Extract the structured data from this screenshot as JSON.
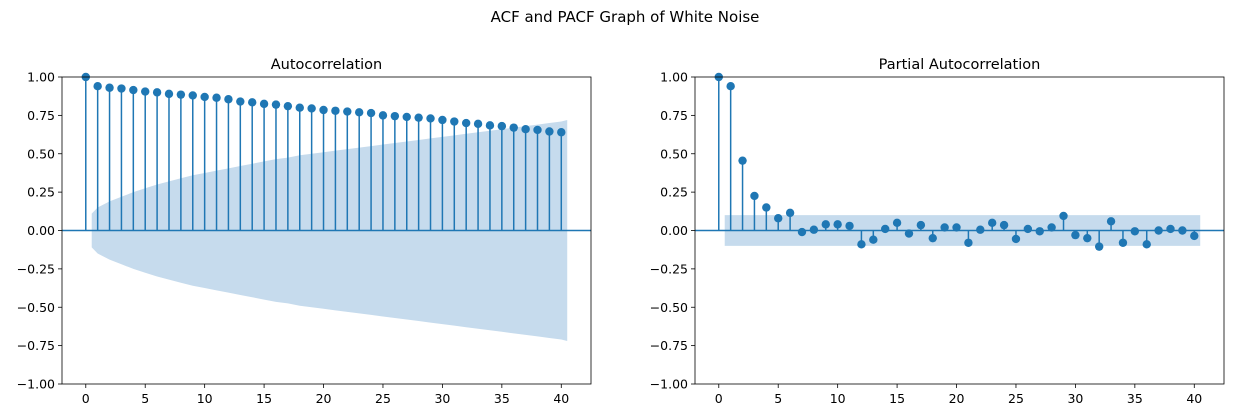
{
  "figure": {
    "title": "ACF and PACF Graph of White Noise"
  },
  "colors": {
    "stem": "#1f77b4",
    "band": "#c6dbed",
    "axis": "#000000"
  },
  "chart_data": [
    {
      "type": "stem",
      "title": "Autocorrelation",
      "xlabel": "",
      "ylabel": "",
      "xlim": [
        -2,
        42.5
      ],
      "ylim": [
        -1.0,
        1.0
      ],
      "xticks": [
        0,
        5,
        10,
        15,
        20,
        25,
        30,
        35,
        40
      ],
      "yticks": [
        -1.0,
        -0.75,
        -0.5,
        -0.25,
        0.0,
        0.25,
        0.5,
        0.75,
        1.0
      ],
      "ytick_labels": [
        "−1.00",
        "−0.75",
        "−0.50",
        "−0.25",
        "0.00",
        "0.25",
        "0.50",
        "0.75",
        "1.00"
      ],
      "x": [
        0,
        1,
        2,
        3,
        4,
        5,
        6,
        7,
        8,
        9,
        10,
        11,
        12,
        13,
        14,
        15,
        16,
        17,
        18,
        19,
        20,
        21,
        22,
        23,
        24,
        25,
        26,
        27,
        28,
        29,
        30,
        31,
        32,
        33,
        34,
        35,
        36,
        37,
        38,
        39,
        40
      ],
      "values": [
        1.0,
        0.94,
        0.93,
        0.925,
        0.915,
        0.905,
        0.9,
        0.89,
        0.885,
        0.88,
        0.87,
        0.865,
        0.855,
        0.84,
        0.835,
        0.825,
        0.82,
        0.81,
        0.8,
        0.795,
        0.785,
        0.78,
        0.775,
        0.77,
        0.765,
        0.75,
        0.745,
        0.74,
        0.735,
        0.73,
        0.72,
        0.71,
        0.7,
        0.695,
        0.685,
        0.68,
        0.67,
        0.66,
        0.655,
        0.645,
        0.64
      ],
      "confidence_band": {
        "x": [
          0.5,
          1,
          2,
          3,
          4,
          5,
          6,
          7,
          8,
          9,
          10,
          11,
          12,
          13,
          14,
          15,
          16,
          17,
          18,
          19,
          20,
          21,
          22,
          23,
          24,
          25,
          26,
          27,
          28,
          29,
          30,
          31,
          32,
          33,
          34,
          35,
          36,
          37,
          38,
          39,
          40,
          40.5
        ],
        "upper": [
          0.11,
          0.15,
          0.19,
          0.22,
          0.25,
          0.275,
          0.3,
          0.32,
          0.34,
          0.36,
          0.375,
          0.39,
          0.405,
          0.42,
          0.435,
          0.45,
          0.465,
          0.475,
          0.49,
          0.5,
          0.51,
          0.52,
          0.53,
          0.54,
          0.55,
          0.56,
          0.57,
          0.58,
          0.59,
          0.6,
          0.61,
          0.62,
          0.63,
          0.64,
          0.65,
          0.66,
          0.67,
          0.68,
          0.69,
          0.7,
          0.71,
          0.72
        ],
        "lower": [
          -0.11,
          -0.15,
          -0.19,
          -0.22,
          -0.25,
          -0.275,
          -0.3,
          -0.32,
          -0.34,
          -0.36,
          -0.375,
          -0.39,
          -0.405,
          -0.42,
          -0.435,
          -0.45,
          -0.465,
          -0.475,
          -0.49,
          -0.5,
          -0.51,
          -0.52,
          -0.53,
          -0.54,
          -0.55,
          -0.56,
          -0.57,
          -0.58,
          -0.59,
          -0.6,
          -0.61,
          -0.62,
          -0.63,
          -0.64,
          -0.65,
          -0.66,
          -0.67,
          -0.68,
          -0.69,
          -0.7,
          -0.71,
          -0.72
        ]
      }
    },
    {
      "type": "stem",
      "title": "Partial Autocorrelation",
      "xlabel": "",
      "ylabel": "",
      "xlim": [
        -2,
        42.5
      ],
      "ylim": [
        -1.0,
        1.0
      ],
      "xticks": [
        0,
        5,
        10,
        15,
        20,
        25,
        30,
        35,
        40
      ],
      "yticks": [
        -1.0,
        -0.75,
        -0.5,
        -0.25,
        0.0,
        0.25,
        0.5,
        0.75,
        1.0
      ],
      "ytick_labels": [
        "−1.00",
        "−0.75",
        "−0.50",
        "−0.25",
        "0.00",
        "0.25",
        "0.50",
        "0.75",
        "1.00"
      ],
      "x": [
        0,
        1,
        2,
        3,
        4,
        5,
        6,
        7,
        8,
        9,
        10,
        11,
        12,
        13,
        14,
        15,
        16,
        17,
        18,
        19,
        20,
        21,
        22,
        23,
        24,
        25,
        26,
        27,
        28,
        29,
        30,
        31,
        32,
        33,
        34,
        35,
        36,
        37,
        38,
        39,
        40
      ],
      "values": [
        1.0,
        0.94,
        0.455,
        0.225,
        0.15,
        0.08,
        0.115,
        -0.01,
        0.005,
        0.04,
        0.04,
        0.03,
        -0.09,
        -0.06,
        0.01,
        0.05,
        -0.02,
        0.035,
        -0.05,
        0.02,
        0.02,
        -0.08,
        0.005,
        0.05,
        0.035,
        -0.055,
        0.01,
        -0.005,
        0.02,
        0.095,
        -0.03,
        -0.05,
        -0.105,
        0.06,
        -0.08,
        -0.005,
        -0.09,
        0.0,
        0.01,
        0.0,
        -0.035
      ],
      "confidence_band": {
        "x": [
          0.5,
          40.5
        ],
        "upper": [
          0.1,
          0.1
        ],
        "lower": [
          -0.1,
          -0.1
        ]
      }
    }
  ]
}
